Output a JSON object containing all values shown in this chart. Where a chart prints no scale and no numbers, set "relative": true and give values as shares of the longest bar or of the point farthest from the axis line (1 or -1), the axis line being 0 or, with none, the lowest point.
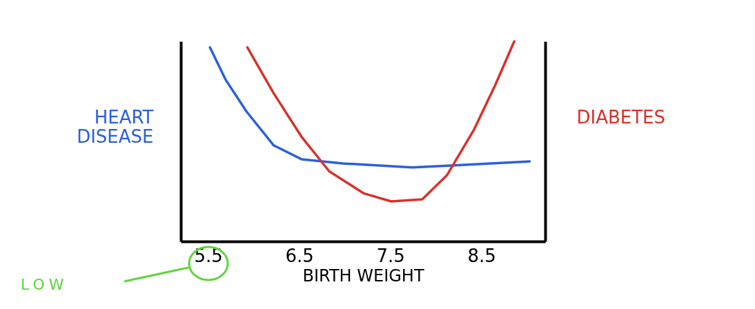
{
  "chart_data": {
    "type": "line",
    "relative": true,
    "xlabel": "BIRTH WEIGHT",
    "ylabel": "HEART DISEASE",
    "y2label": "DIABETES",
    "xlim": [
      5.2,
      9.2
    ],
    "xticks": [
      5.5,
      6.5,
      7.5,
      8.5
    ],
    "grid": false,
    "marker": "none",
    "line_style": "solid",
    "annotations": [
      "LOW"
    ],
    "series": [
      {
        "color": "#2a5fe0",
        "x": [
          5.52,
          5.69,
          5.92,
          6.22,
          6.53,
          6.98,
          7.74,
          8.2,
          9.03
        ],
        "values": [
          0.97,
          0.81,
          0.65,
          0.48,
          0.41,
          0.39,
          0.37,
          0.38,
          0.4
        ]
      },
      {
        "color": "#d8312a",
        "axis": "y2",
        "x": [
          5.93,
          6.22,
          6.53,
          6.83,
          7.21,
          7.51,
          7.85,
          8.12,
          8.42,
          8.65,
          8.86
        ],
        "values": [
          0.97,
          0.74,
          0.52,
          0.35,
          0.24,
          0.2,
          0.21,
          0.33,
          0.56,
          0.78,
          1
        ]
      }
    ]
  }
}
